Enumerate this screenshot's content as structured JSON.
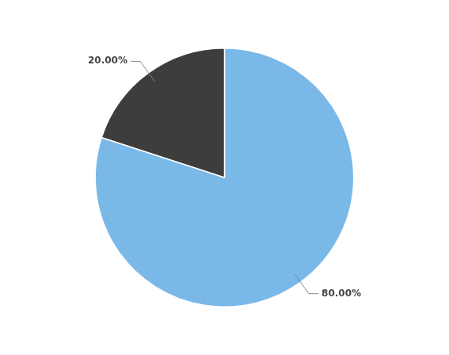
{
  "chart_data": {
    "type": "pie",
    "values": [
      80.0,
      20.0
    ],
    "value_labels": [
      "80.00%",
      "20.00%"
    ],
    "colors": [
      "#7ab8e8",
      "#3d3d3d"
    ],
    "data_labels": true,
    "legend": false
  }
}
